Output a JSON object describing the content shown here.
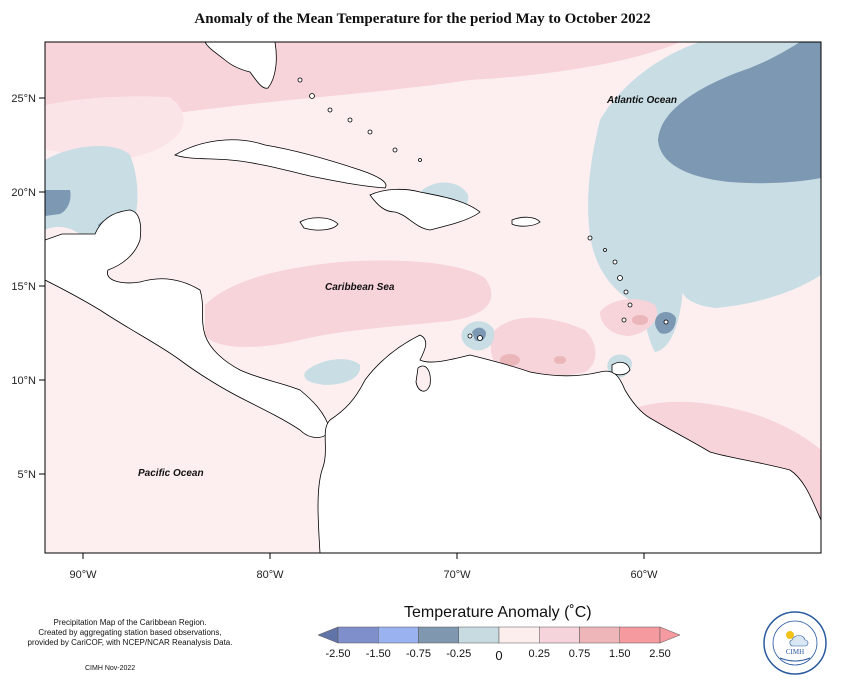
{
  "title": "Anomaly of the Mean Temperature for the period May to October 2022",
  "map": {
    "labels": {
      "atlantic": "Atlantic Ocean",
      "caribbean": "Caribbean Sea",
      "pacific": "Pacific Ocean"
    },
    "lat_ticks": [
      "25°N",
      "20°N",
      "15°N",
      "10°N",
      "5°N"
    ],
    "lon_ticks": [
      "90°W",
      "80°W",
      "70°W",
      "60°W"
    ],
    "lon_range": [
      -92,
      -50.5
    ],
    "lat_range": [
      1.5,
      28.5
    ],
    "colors": {
      "pink_light": "#fbe4e7",
      "pink": "#f7d3da",
      "pink_dark": "#eab6b9",
      "blue_light": "#c9dde4",
      "blue_dark": "#7d98b2",
      "background": "#fdeff0",
      "land": "#ffffff",
      "border": "#000000"
    }
  },
  "legend": {
    "title": "Temperature Anomaly (˚C)",
    "ticks": [
      "-2.50",
      "-1.50",
      "-0.75",
      "-0.25",
      "0",
      "0.25",
      "0.75",
      "1.50",
      "2.50"
    ],
    "colors": [
      "#6174a8",
      "#7e8fcb",
      "#9bb2f1",
      "#7f98b0",
      "#c8dbe1",
      "#fdeeee",
      "#f6d4db",
      "#efb6ba",
      "#f59a9f",
      "#f49aa0"
    ]
  },
  "notes": {
    "line1": "Precipitation Map of the Caribbean Region.",
    "line2": "Created by aggregating station based observations,",
    "line3": "provided by CariCOF, with NCEP/NCAR Reanalysis Data.",
    "credit": "CIMH Nov-2022"
  },
  "logo": {
    "text": "CIMH",
    "icon": "cimh-logo-icon"
  }
}
